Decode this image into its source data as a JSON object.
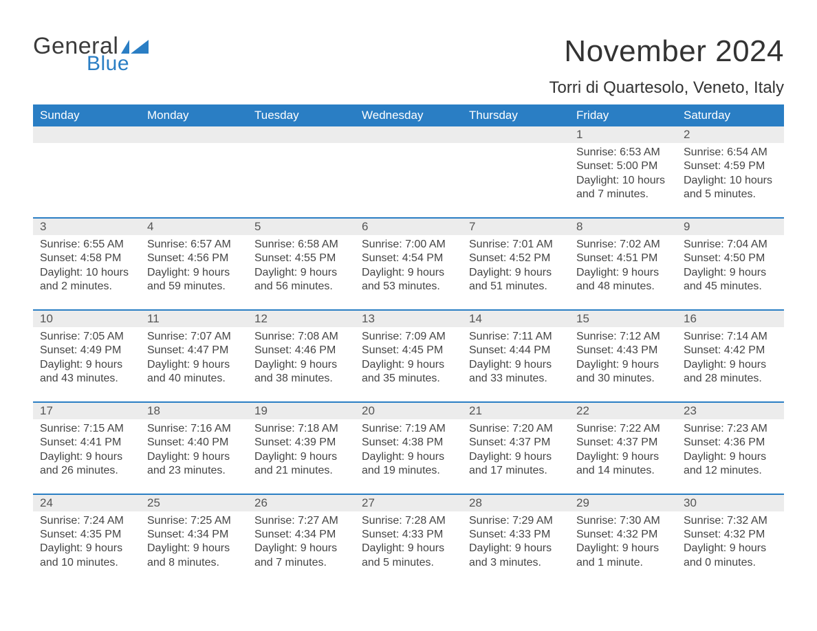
{
  "logo": {
    "text1": "General",
    "text2": "Blue",
    "flag_color": "#2a7ec4"
  },
  "title": "November 2024",
  "location": "Torri di Quartesolo, Veneto, Italy",
  "colors": {
    "header_bg": "#2a7ec4",
    "header_text": "#ffffff",
    "daynum_bg": "#ececec",
    "row_border": "#2a7ec4",
    "body_text": "#444444",
    "page_bg": "#ffffff"
  },
  "typography": {
    "title_fontsize": 44,
    "location_fontsize": 24,
    "header_fontsize": 17,
    "cell_fontsize": 16
  },
  "layout": {
    "columns": 7,
    "rows": 5,
    "first_weekday": "Sunday"
  },
  "weekdays": [
    "Sunday",
    "Monday",
    "Tuesday",
    "Wednesday",
    "Thursday",
    "Friday",
    "Saturday"
  ],
  "weeks": [
    [
      null,
      null,
      null,
      null,
      null,
      {
        "n": "1",
        "sunrise": "Sunrise: 6:53 AM",
        "sunset": "Sunset: 5:00 PM",
        "daylight": "Daylight: 10 hours and 7 minutes."
      },
      {
        "n": "2",
        "sunrise": "Sunrise: 6:54 AM",
        "sunset": "Sunset: 4:59 PM",
        "daylight": "Daylight: 10 hours and 5 minutes."
      }
    ],
    [
      {
        "n": "3",
        "sunrise": "Sunrise: 6:55 AM",
        "sunset": "Sunset: 4:58 PM",
        "daylight": "Daylight: 10 hours and 2 minutes."
      },
      {
        "n": "4",
        "sunrise": "Sunrise: 6:57 AM",
        "sunset": "Sunset: 4:56 PM",
        "daylight": "Daylight: 9 hours and 59 minutes."
      },
      {
        "n": "5",
        "sunrise": "Sunrise: 6:58 AM",
        "sunset": "Sunset: 4:55 PM",
        "daylight": "Daylight: 9 hours and 56 minutes."
      },
      {
        "n": "6",
        "sunrise": "Sunrise: 7:00 AM",
        "sunset": "Sunset: 4:54 PM",
        "daylight": "Daylight: 9 hours and 53 minutes."
      },
      {
        "n": "7",
        "sunrise": "Sunrise: 7:01 AM",
        "sunset": "Sunset: 4:52 PM",
        "daylight": "Daylight: 9 hours and 51 minutes."
      },
      {
        "n": "8",
        "sunrise": "Sunrise: 7:02 AM",
        "sunset": "Sunset: 4:51 PM",
        "daylight": "Daylight: 9 hours and 48 minutes."
      },
      {
        "n": "9",
        "sunrise": "Sunrise: 7:04 AM",
        "sunset": "Sunset: 4:50 PM",
        "daylight": "Daylight: 9 hours and 45 minutes."
      }
    ],
    [
      {
        "n": "10",
        "sunrise": "Sunrise: 7:05 AM",
        "sunset": "Sunset: 4:49 PM",
        "daylight": "Daylight: 9 hours and 43 minutes."
      },
      {
        "n": "11",
        "sunrise": "Sunrise: 7:07 AM",
        "sunset": "Sunset: 4:47 PM",
        "daylight": "Daylight: 9 hours and 40 minutes."
      },
      {
        "n": "12",
        "sunrise": "Sunrise: 7:08 AM",
        "sunset": "Sunset: 4:46 PM",
        "daylight": "Daylight: 9 hours and 38 minutes."
      },
      {
        "n": "13",
        "sunrise": "Sunrise: 7:09 AM",
        "sunset": "Sunset: 4:45 PM",
        "daylight": "Daylight: 9 hours and 35 minutes."
      },
      {
        "n": "14",
        "sunrise": "Sunrise: 7:11 AM",
        "sunset": "Sunset: 4:44 PM",
        "daylight": "Daylight: 9 hours and 33 minutes."
      },
      {
        "n": "15",
        "sunrise": "Sunrise: 7:12 AM",
        "sunset": "Sunset: 4:43 PM",
        "daylight": "Daylight: 9 hours and 30 minutes."
      },
      {
        "n": "16",
        "sunrise": "Sunrise: 7:14 AM",
        "sunset": "Sunset: 4:42 PM",
        "daylight": "Daylight: 9 hours and 28 minutes."
      }
    ],
    [
      {
        "n": "17",
        "sunrise": "Sunrise: 7:15 AM",
        "sunset": "Sunset: 4:41 PM",
        "daylight": "Daylight: 9 hours and 26 minutes."
      },
      {
        "n": "18",
        "sunrise": "Sunrise: 7:16 AM",
        "sunset": "Sunset: 4:40 PM",
        "daylight": "Daylight: 9 hours and 23 minutes."
      },
      {
        "n": "19",
        "sunrise": "Sunrise: 7:18 AM",
        "sunset": "Sunset: 4:39 PM",
        "daylight": "Daylight: 9 hours and 21 minutes."
      },
      {
        "n": "20",
        "sunrise": "Sunrise: 7:19 AM",
        "sunset": "Sunset: 4:38 PM",
        "daylight": "Daylight: 9 hours and 19 minutes."
      },
      {
        "n": "21",
        "sunrise": "Sunrise: 7:20 AM",
        "sunset": "Sunset: 4:37 PM",
        "daylight": "Daylight: 9 hours and 17 minutes."
      },
      {
        "n": "22",
        "sunrise": "Sunrise: 7:22 AM",
        "sunset": "Sunset: 4:37 PM",
        "daylight": "Daylight: 9 hours and 14 minutes."
      },
      {
        "n": "23",
        "sunrise": "Sunrise: 7:23 AM",
        "sunset": "Sunset: 4:36 PM",
        "daylight": "Daylight: 9 hours and 12 minutes."
      }
    ],
    [
      {
        "n": "24",
        "sunrise": "Sunrise: 7:24 AM",
        "sunset": "Sunset: 4:35 PM",
        "daylight": "Daylight: 9 hours and 10 minutes."
      },
      {
        "n": "25",
        "sunrise": "Sunrise: 7:25 AM",
        "sunset": "Sunset: 4:34 PM",
        "daylight": "Daylight: 9 hours and 8 minutes."
      },
      {
        "n": "26",
        "sunrise": "Sunrise: 7:27 AM",
        "sunset": "Sunset: 4:34 PM",
        "daylight": "Daylight: 9 hours and 7 minutes."
      },
      {
        "n": "27",
        "sunrise": "Sunrise: 7:28 AM",
        "sunset": "Sunset: 4:33 PM",
        "daylight": "Daylight: 9 hours and 5 minutes."
      },
      {
        "n": "28",
        "sunrise": "Sunrise: 7:29 AM",
        "sunset": "Sunset: 4:33 PM",
        "daylight": "Daylight: 9 hours and 3 minutes."
      },
      {
        "n": "29",
        "sunrise": "Sunrise: 7:30 AM",
        "sunset": "Sunset: 4:32 PM",
        "daylight": "Daylight: 9 hours and 1 minute."
      },
      {
        "n": "30",
        "sunrise": "Sunrise: 7:32 AM",
        "sunset": "Sunset: 4:32 PM",
        "daylight": "Daylight: 9 hours and 0 minutes."
      }
    ]
  ]
}
